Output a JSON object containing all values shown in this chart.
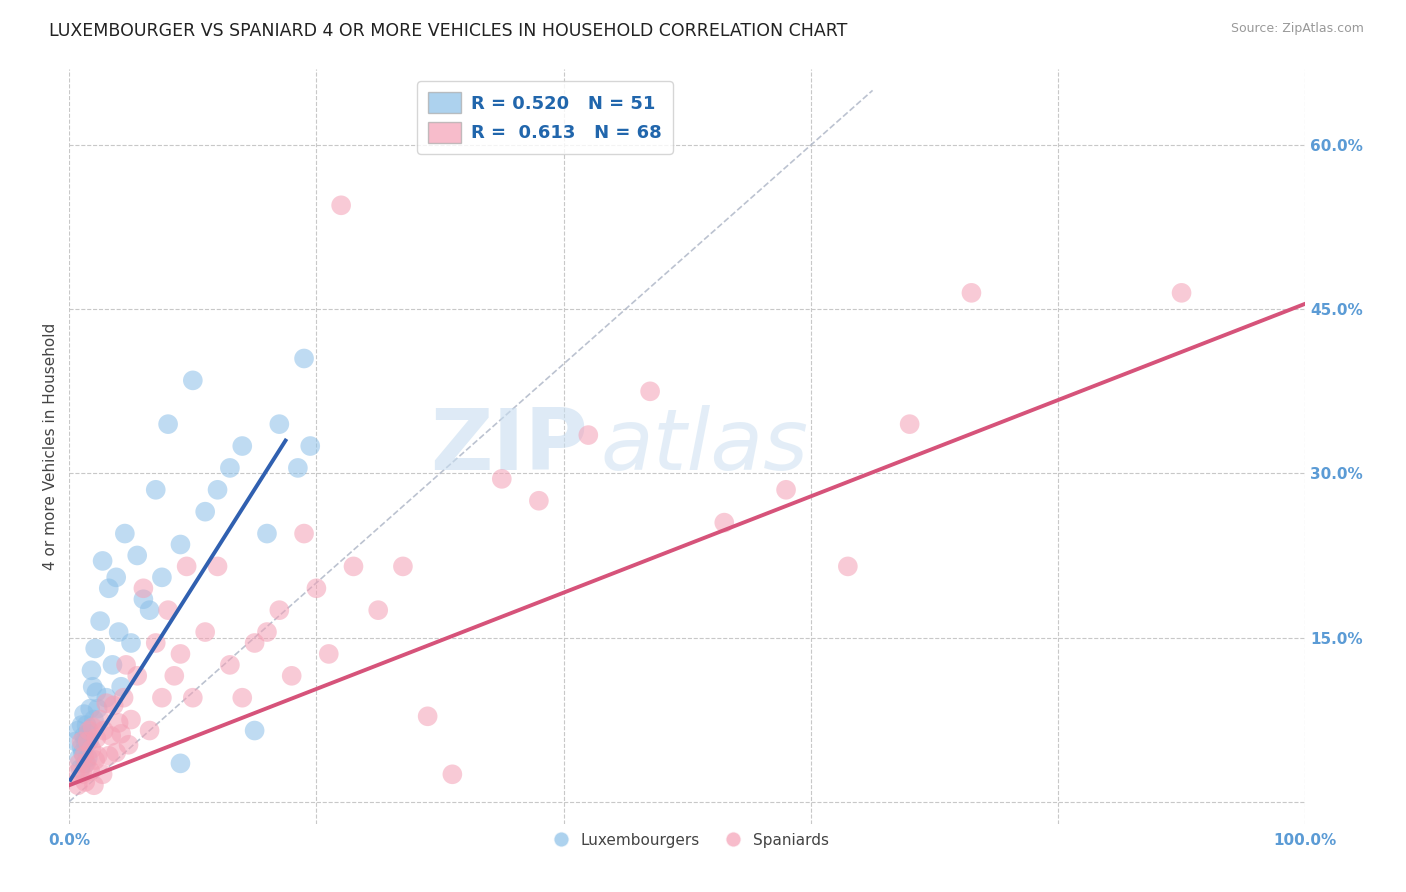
{
  "title": "LUXEMBOURGER VS SPANIARD 4 OR MORE VEHICLES IN HOUSEHOLD CORRELATION CHART",
  "source": "Source: ZipAtlas.com",
  "ylabel": "4 or more Vehicles in Household",
  "xlim": [
    0.0,
    1.0
  ],
  "ylim": [
    -0.02,
    0.67
  ],
  "xticks": [
    0.0,
    0.2,
    0.4,
    0.6,
    0.8,
    1.0
  ],
  "xtick_labels": [
    "0.0%",
    "",
    "",
    "",
    "",
    "100.0%"
  ],
  "ytick_positions": [
    0.0,
    0.15,
    0.3,
    0.45,
    0.6
  ],
  "ytick_labels": [
    "",
    "15.0%",
    "30.0%",
    "45.0%",
    "60.0%"
  ],
  "blue_R": 0.52,
  "blue_N": 51,
  "pink_R": 0.613,
  "pink_N": 68,
  "blue_color": "#8bbfe8",
  "pink_color": "#f4a0b5",
  "blue_line_color": "#3060b0",
  "pink_line_color": "#d6537a",
  "blue_label": "Luxembourgers",
  "pink_label": "Spaniards",
  "watermark_zip": "ZIP",
  "watermark_atlas": "atlas",
  "grid_color": "#c8c8c8",
  "background_color": "#ffffff",
  "title_fontsize": 12.5,
  "axis_label_fontsize": 11,
  "tick_label_color": "#5b9bd5",
  "legend_fontsize": 13,
  "blue_scatter_x": [
    0.005,
    0.007,
    0.008,
    0.009,
    0.01,
    0.01,
    0.011,
    0.012,
    0.012,
    0.013,
    0.013,
    0.014,
    0.015,
    0.015,
    0.016,
    0.017,
    0.018,
    0.019,
    0.02,
    0.021,
    0.022,
    0.023,
    0.025,
    0.027,
    0.03,
    0.032,
    0.035,
    0.038,
    0.04,
    0.042,
    0.045,
    0.05,
    0.055,
    0.06,
    0.065,
    0.07,
    0.075,
    0.08,
    0.09,
    0.1,
    0.11,
    0.12,
    0.13,
    0.14,
    0.15,
    0.16,
    0.17,
    0.185,
    0.19,
    0.195,
    0.09
  ],
  "blue_scatter_y": [
    0.055,
    0.065,
    0.04,
    0.03,
    0.05,
    0.07,
    0.045,
    0.06,
    0.08,
    0.035,
    0.055,
    0.07,
    0.04,
    0.062,
    0.055,
    0.085,
    0.12,
    0.105,
    0.075,
    0.14,
    0.1,
    0.085,
    0.165,
    0.22,
    0.095,
    0.195,
    0.125,
    0.205,
    0.155,
    0.105,
    0.245,
    0.145,
    0.225,
    0.185,
    0.175,
    0.285,
    0.205,
    0.345,
    0.235,
    0.385,
    0.265,
    0.285,
    0.305,
    0.325,
    0.065,
    0.245,
    0.345,
    0.305,
    0.405,
    0.325,
    0.035
  ],
  "pink_scatter_x": [
    0.005,
    0.007,
    0.008,
    0.01,
    0.011,
    0.012,
    0.013,
    0.014,
    0.015,
    0.016,
    0.017,
    0.018,
    0.019,
    0.02,
    0.021,
    0.022,
    0.023,
    0.025,
    0.027,
    0.028,
    0.03,
    0.032,
    0.034,
    0.036,
    0.038,
    0.04,
    0.042,
    0.044,
    0.046,
    0.048,
    0.05,
    0.055,
    0.06,
    0.065,
    0.07,
    0.075,
    0.08,
    0.085,
    0.09,
    0.095,
    0.1,
    0.11,
    0.12,
    0.13,
    0.14,
    0.15,
    0.16,
    0.17,
    0.18,
    0.19,
    0.2,
    0.21,
    0.22,
    0.23,
    0.25,
    0.27,
    0.29,
    0.31,
    0.35,
    0.38,
    0.42,
    0.47,
    0.53,
    0.58,
    0.63,
    0.68,
    0.73,
    0.9
  ],
  "pink_scatter_y": [
    0.025,
    0.015,
    0.035,
    0.055,
    0.025,
    0.042,
    0.018,
    0.035,
    0.055,
    0.065,
    0.028,
    0.048,
    0.068,
    0.015,
    0.038,
    0.058,
    0.042,
    0.075,
    0.025,
    0.065,
    0.09,
    0.042,
    0.06,
    0.088,
    0.045,
    0.072,
    0.062,
    0.095,
    0.125,
    0.052,
    0.075,
    0.115,
    0.195,
    0.065,
    0.145,
    0.095,
    0.175,
    0.115,
    0.135,
    0.215,
    0.095,
    0.155,
    0.215,
    0.125,
    0.095,
    0.145,
    0.155,
    0.175,
    0.115,
    0.245,
    0.195,
    0.135,
    0.545,
    0.215,
    0.175,
    0.215,
    0.078,
    0.025,
    0.295,
    0.275,
    0.335,
    0.375,
    0.255,
    0.285,
    0.215,
    0.345,
    0.465,
    0.465
  ],
  "blue_line_x": [
    0.001,
    0.175
  ],
  "blue_line_y": [
    0.02,
    0.33
  ],
  "pink_line_x": [
    0.0,
    1.0
  ],
  "pink_line_y": [
    0.015,
    0.455
  ],
  "diag_line_x": [
    0.0,
    0.65
  ],
  "diag_line_y": [
    0.0,
    0.65
  ]
}
